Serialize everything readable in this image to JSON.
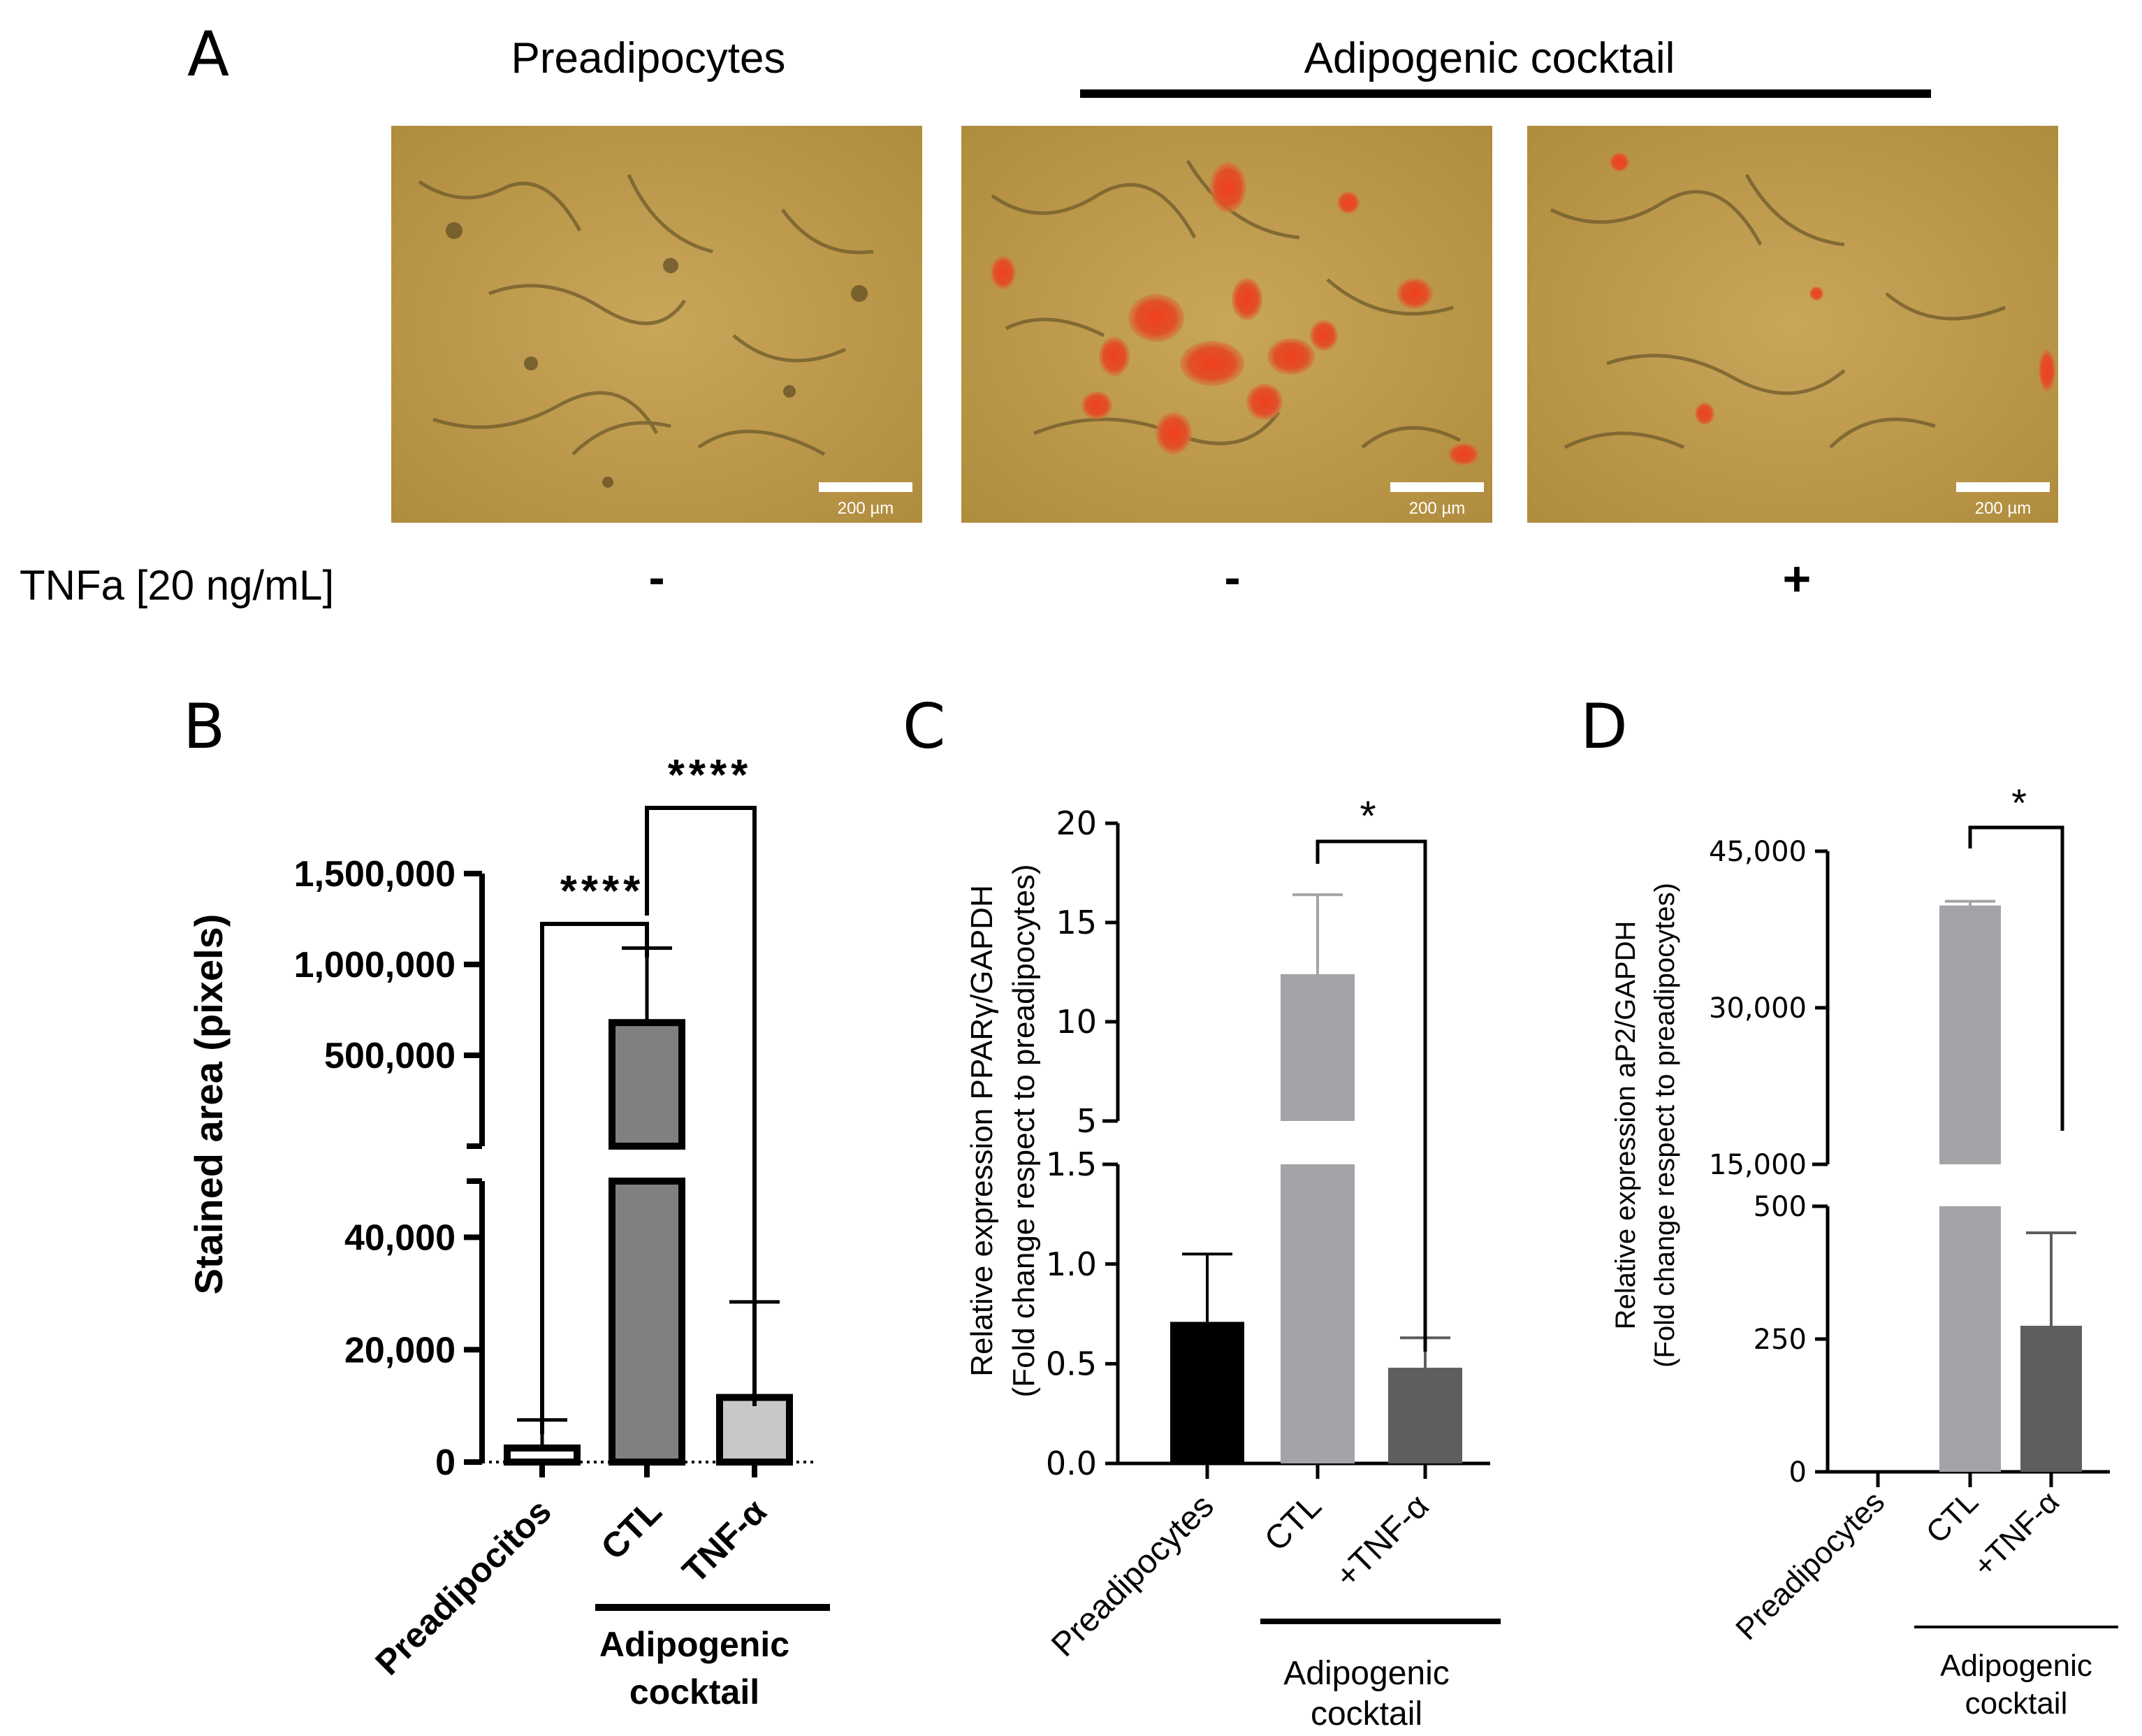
{
  "panel_labels": {
    "a": "A",
    "b": "B",
    "c": "C",
    "d": "D"
  },
  "panel_a": {
    "header_left": "Preadipocytes",
    "header_right": "Adipogenic cocktail",
    "scale_bar_label": "200 µm",
    "treatment_label": "TNFa [20 ng/mL]",
    "treatment_signs": [
      "-",
      "-",
      "+"
    ]
  },
  "chart_data": [
    {
      "panel": "B",
      "type": "bar",
      "ylabel": "Stained area (pixels)",
      "categories": [
        "Preadipocitos",
        "CTL",
        "TNF-α"
      ],
      "values": [
        2500,
        680000,
        11500
      ],
      "errors": [
        5000,
        410000,
        17000
      ],
      "colors": [
        "#ffffff",
        "#808080",
        "#c8c8c8"
      ],
      "axis_break": {
        "lower": [
          0,
          50000
        ],
        "upper": [
          0,
          1500000
        ]
      },
      "ticks_lower": [
        "0",
        "20,000",
        "40,000"
      ],
      "ticks_upper": [
        "500,000",
        "1,000,000",
        "1,500,000"
      ],
      "group_label": [
        "Adipogenic",
        "cocktail"
      ],
      "significance": [
        "****",
        "****"
      ]
    },
    {
      "panel": "C",
      "type": "bar",
      "ylabel": [
        "Relative expression PPARγ/GAPDH",
        "(Fold change respect to preadipocytes)"
      ],
      "categories": [
        "Preadipocytes",
        "CTL",
        "+TNF-α"
      ],
      "values": [
        0.71,
        12.4,
        0.48
      ],
      "errors": [
        0.34,
        4.0,
        0.15
      ],
      "colors": [
        "#000000",
        "#a3a3a8",
        "#5e5e5e"
      ],
      "axis_break": {
        "lower": [
          0,
          1.5
        ],
        "upper": [
          5,
          20
        ]
      },
      "ticks_lower": [
        "0.0",
        "0.5",
        "1.0",
        "1.5"
      ],
      "ticks_upper": [
        "5",
        "10",
        "15",
        "20"
      ],
      "group_label": [
        "Adipogenic",
        "cocktail"
      ],
      "significance": [
        "*"
      ]
    },
    {
      "panel": "D",
      "type": "bar",
      "ylabel": [
        "Relative expression aP2/GAPDH",
        "(Fold change respect to preadipocytes)"
      ],
      "categories": [
        "Preadipocytes",
        "CTL",
        "+TNF-α"
      ],
      "values": [
        1,
        39800,
        275
      ],
      "errors": [
        0,
        400,
        175
      ],
      "colors": [
        "#000000",
        "#a3a3a8",
        "#5e5e5e"
      ],
      "axis_break": {
        "lower": [
          0,
          500
        ],
        "upper": [
          15000,
          45000
        ]
      },
      "ticks_lower": [
        "0",
        "250",
        "500"
      ],
      "ticks_upper": [
        "15,000",
        "30,000",
        "45,000"
      ],
      "group_label": [
        "Adipogenic",
        "cocktail"
      ],
      "significance": [
        "*"
      ]
    }
  ]
}
